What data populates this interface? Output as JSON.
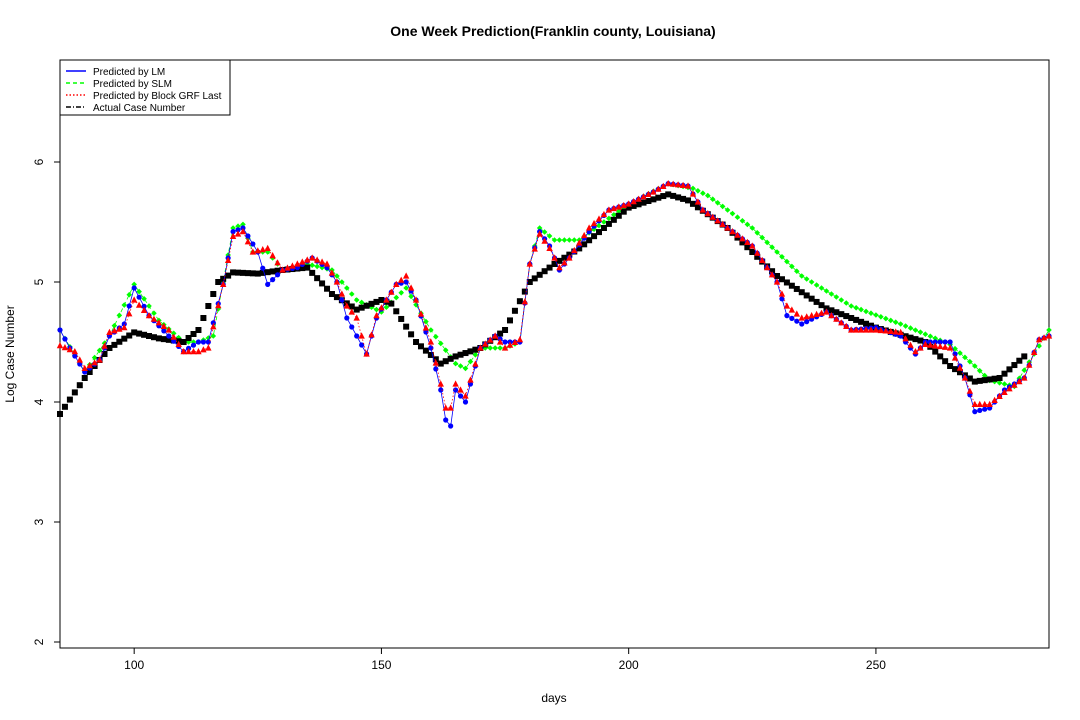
{
  "chart_data": {
    "type": "scatter",
    "title": "One Week Prediction(Franklin county, Louisiana)",
    "xlabel": "days",
    "ylabel": "Log Case Number",
    "xlim": [
      85,
      285
    ],
    "ylim": [
      1.95,
      6.85
    ],
    "xticks": [
      100,
      150,
      200,
      250
    ],
    "yticks": [
      2,
      3,
      4,
      5,
      6
    ],
    "grid": false,
    "legend_position": "top-left",
    "legend": [
      {
        "label": "Predicted by LM",
        "color": "#0000ff",
        "line": "solid"
      },
      {
        "label": "Predicted by SLM",
        "color": "#00ff00",
        "line": "dashed"
      },
      {
        "label": "Predicted by Block GRF Last",
        "color": "#ff0000",
        "line": "dotted"
      },
      {
        "label": "Actual Case Number",
        "color": "#000000",
        "line": "dashdot"
      }
    ],
    "series": [
      {
        "name": "Actual Case Number",
        "color": "#000000",
        "marker": "square",
        "anchors": [
          [
            85,
            3.9
          ],
          [
            90,
            4.2
          ],
          [
            95,
            4.45
          ],
          [
            100,
            4.58
          ],
          [
            105,
            4.53
          ],
          [
            110,
            4.5
          ],
          [
            113,
            4.6
          ],
          [
            117,
            5.0
          ],
          [
            120,
            5.08
          ],
          [
            125,
            5.07
          ],
          [
            130,
            5.1
          ],
          [
            135,
            5.12
          ],
          [
            140,
            4.9
          ],
          [
            145,
            4.77
          ],
          [
            150,
            4.85
          ],
          [
            152,
            4.82
          ],
          [
            157,
            4.5
          ],
          [
            162,
            4.32
          ],
          [
            165,
            4.38
          ],
          [
            170,
            4.45
          ],
          [
            175,
            4.6
          ],
          [
            180,
            5.0
          ],
          [
            185,
            5.15
          ],
          [
            190,
            5.28
          ],
          [
            200,
            5.62
          ],
          [
            208,
            5.73
          ],
          [
            212,
            5.68
          ],
          [
            220,
            5.45
          ],
          [
            230,
            5.05
          ],
          [
            240,
            4.78
          ],
          [
            250,
            4.62
          ],
          [
            260,
            4.5
          ],
          [
            265,
            4.3
          ],
          [
            270,
            4.17
          ],
          [
            275,
            4.2
          ],
          [
            280,
            4.38
          ]
        ]
      },
      {
        "name": "Predicted by LM",
        "color": "#0000ff",
        "marker": "circle",
        "anchors": [
          [
            85,
            4.6
          ],
          [
            87,
            4.45
          ],
          [
            90,
            4.25
          ],
          [
            93,
            4.35
          ],
          [
            95,
            4.55
          ],
          [
            98,
            4.65
          ],
          [
            100,
            4.95
          ],
          [
            103,
            4.72
          ],
          [
            107,
            4.55
          ],
          [
            110,
            4.42
          ],
          [
            113,
            4.5
          ],
          [
            115,
            4.5
          ],
          [
            118,
            4.98
          ],
          [
            120,
            5.42
          ],
          [
            122,
            5.45
          ],
          [
            125,
            5.25
          ],
          [
            127,
            4.98
          ],
          [
            130,
            5.1
          ],
          [
            133,
            5.12
          ],
          [
            136,
            5.2
          ],
          [
            139,
            5.12
          ],
          [
            141,
            5.0
          ],
          [
            143,
            4.7
          ],
          [
            145,
            4.55
          ],
          [
            147,
            4.4
          ],
          [
            149,
            4.7
          ],
          [
            151,
            4.85
          ],
          [
            153,
            4.98
          ],
          [
            155,
            5.0
          ],
          [
            157,
            4.85
          ],
          [
            160,
            4.45
          ],
          [
            162,
            4.1
          ],
          [
            163,
            3.85
          ],
          [
            164,
            3.8
          ],
          [
            165,
            4.1
          ],
          [
            167,
            4.0
          ],
          [
            170,
            4.45
          ],
          [
            173,
            4.55
          ],
          [
            175,
            4.5
          ],
          [
            178,
            4.5
          ],
          [
            180,
            5.15
          ],
          [
            182,
            5.42
          ],
          [
            184,
            5.3
          ],
          [
            186,
            5.1
          ],
          [
            188,
            5.2
          ],
          [
            192,
            5.42
          ],
          [
            196,
            5.6
          ],
          [
            200,
            5.65
          ],
          [
            205,
            5.75
          ],
          [
            208,
            5.82
          ],
          [
            212,
            5.8
          ],
          [
            215,
            5.6
          ],
          [
            220,
            5.45
          ],
          [
            225,
            5.3
          ],
          [
            230,
            5.0
          ],
          [
            232,
            4.72
          ],
          [
            235,
            4.65
          ],
          [
            240,
            4.75
          ],
          [
            245,
            4.6
          ],
          [
            250,
            4.62
          ],
          [
            255,
            4.55
          ],
          [
            258,
            4.4
          ],
          [
            260,
            4.5
          ],
          [
            265,
            4.5
          ],
          [
            268,
            4.2
          ],
          [
            270,
            3.92
          ],
          [
            273,
            3.95
          ],
          [
            276,
            4.1
          ],
          [
            280,
            4.2
          ],
          [
            283,
            4.52
          ],
          [
            285,
            4.55
          ]
        ]
      },
      {
        "name": "Predicted by SLM",
        "color": "#00ff00",
        "marker": "diamond",
        "anchors": [
          [
            85,
            4.6
          ],
          [
            90,
            4.25
          ],
          [
            95,
            4.55
          ],
          [
            100,
            4.98
          ],
          [
            105,
            4.68
          ],
          [
            110,
            4.5
          ],
          [
            113,
            4.5
          ],
          [
            116,
            4.55
          ],
          [
            118,
            5.0
          ],
          [
            120,
            5.45
          ],
          [
            122,
            5.48
          ],
          [
            124,
            5.25
          ],
          [
            127,
            5.25
          ],
          [
            130,
            5.1
          ],
          [
            135,
            5.15
          ],
          [
            140,
            5.1
          ],
          [
            145,
            4.85
          ],
          [
            150,
            4.75
          ],
          [
            155,
            4.95
          ],
          [
            160,
            4.6
          ],
          [
            165,
            4.32
          ],
          [
            167,
            4.28
          ],
          [
            170,
            4.45
          ],
          [
            175,
            4.45
          ],
          [
            178,
            4.5
          ],
          [
            180,
            5.15
          ],
          [
            182,
            5.45
          ],
          [
            185,
            5.35
          ],
          [
            190,
            5.35
          ],
          [
            200,
            5.65
          ],
          [
            208,
            5.82
          ],
          [
            213,
            5.78
          ],
          [
            216,
            5.72
          ],
          [
            225,
            5.45
          ],
          [
            235,
            5.05
          ],
          [
            245,
            4.8
          ],
          [
            255,
            4.65
          ],
          [
            265,
            4.48
          ],
          [
            270,
            4.3
          ],
          [
            273,
            4.18
          ],
          [
            278,
            4.13
          ],
          [
            282,
            4.4
          ],
          [
            285,
            4.6
          ]
        ]
      },
      {
        "name": "Predicted by Block GRF Last",
        "color": "#ff0000",
        "marker": "triangle",
        "anchors": [
          [
            85,
            4.47
          ],
          [
            88,
            4.42
          ],
          [
            90,
            4.28
          ],
          [
            93,
            4.35
          ],
          [
            95,
            4.58
          ],
          [
            98,
            4.62
          ],
          [
            100,
            4.85
          ],
          [
            103,
            4.72
          ],
          [
            107,
            4.6
          ],
          [
            110,
            4.42
          ],
          [
            113,
            4.42
          ],
          [
            115,
            4.45
          ],
          [
            118,
            4.98
          ],
          [
            120,
            5.38
          ],
          [
            122,
            5.42
          ],
          [
            124,
            5.25
          ],
          [
            127,
            5.28
          ],
          [
            130,
            5.1
          ],
          [
            133,
            5.15
          ],
          [
            136,
            5.2
          ],
          [
            139,
            5.15
          ],
          [
            141,
            5.0
          ],
          [
            143,
            4.8
          ],
          [
            145,
            4.7
          ],
          [
            147,
            4.4
          ],
          [
            149,
            4.72
          ],
          [
            151,
            4.85
          ],
          [
            153,
            4.98
          ],
          [
            155,
            5.05
          ],
          [
            157,
            4.85
          ],
          [
            160,
            4.5
          ],
          [
            162,
            4.15
          ],
          [
            163,
            3.95
          ],
          [
            164,
            3.95
          ],
          [
            165,
            4.15
          ],
          [
            167,
            4.05
          ],
          [
            170,
            4.45
          ],
          [
            173,
            4.55
          ],
          [
            175,
            4.45
          ],
          [
            178,
            4.52
          ],
          [
            180,
            5.15
          ],
          [
            182,
            5.4
          ],
          [
            184,
            5.28
          ],
          [
            186,
            5.12
          ],
          [
            188,
            5.2
          ],
          [
            192,
            5.45
          ],
          [
            196,
            5.6
          ],
          [
            200,
            5.65
          ],
          [
            205,
            5.75
          ],
          [
            208,
            5.82
          ],
          [
            212,
            5.8
          ],
          [
            215,
            5.6
          ],
          [
            220,
            5.45
          ],
          [
            225,
            5.3
          ],
          [
            230,
            5.0
          ],
          [
            232,
            4.8
          ],
          [
            235,
            4.7
          ],
          [
            240,
            4.75
          ],
          [
            245,
            4.6
          ],
          [
            250,
            4.6
          ],
          [
            255,
            4.58
          ],
          [
            258,
            4.42
          ],
          [
            260,
            4.48
          ],
          [
            265,
            4.45
          ],
          [
            268,
            4.2
          ],
          [
            270,
            3.98
          ],
          [
            273,
            3.98
          ],
          [
            276,
            4.08
          ],
          [
            280,
            4.2
          ],
          [
            283,
            4.52
          ],
          [
            285,
            4.55
          ]
        ]
      }
    ]
  }
}
